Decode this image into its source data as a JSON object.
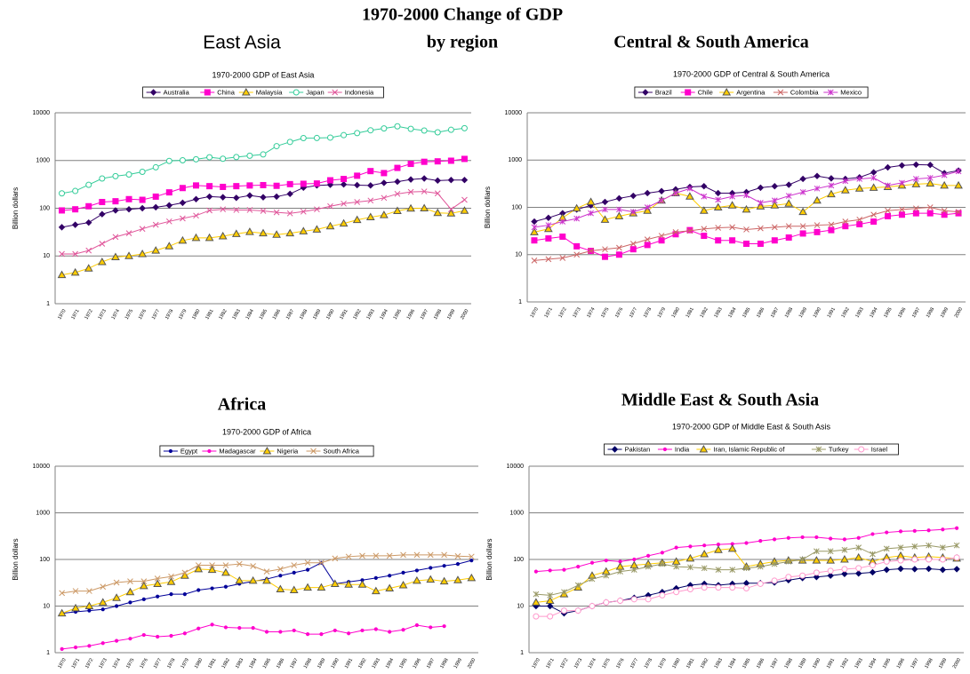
{
  "header": {
    "title": "1970-2000 Change of GDP",
    "subtitle": "by region"
  },
  "chart_data": [
    {
      "type": "line",
      "heading": "East Asia",
      "title": "1970-2000 GDP of East Asia",
      "y_label": "Billion dollars",
      "log": true,
      "grid": true,
      "ylim": [
        1,
        10000
      ],
      "yticks": [
        1,
        10,
        100,
        1000,
        10000
      ],
      "categories": [
        "1970",
        "1971",
        "1972",
        "1973",
        "1974",
        "1975",
        "1976",
        "1977",
        "1978",
        "1979",
        "1980",
        "1981",
        "1982",
        "1983",
        "1984",
        "1985",
        "1986",
        "1987",
        "1988",
        "1989",
        "1990",
        "1991",
        "1992",
        "1993",
        "1994",
        "1995",
        "1996",
        "1997",
        "1998",
        "1999",
        "2000"
      ],
      "series": [
        {
          "name": "Australia",
          "color": "#330066",
          "marker": "diamond",
          "values": [
            40,
            45,
            50,
            75,
            90,
            95,
            100,
            105,
            115,
            130,
            155,
            175,
            170,
            165,
            185,
            170,
            175,
            200,
            270,
            300,
            310,
            315,
            305,
            300,
            340,
            360,
            400,
            420,
            380,
            390,
            390
          ]
        },
        {
          "name": "China",
          "color": "#ff00cc",
          "marker": "square",
          "values": [
            90,
            95,
            110,
            135,
            140,
            155,
            150,
            175,
            215,
            265,
            300,
            290,
            280,
            290,
            300,
            305,
            295,
            320,
            325,
            330,
            385,
            410,
            480,
            600,
            545,
            700,
            850,
            940,
            960,
            990,
            1080
          ]
        },
        {
          "name": "Malaysia",
          "color": "#ffcc00",
          "marker": "triangle",
          "values": [
            4,
            4.5,
            5.5,
            7.5,
            9.5,
            10,
            11,
            13,
            16,
            21,
            24,
            24,
            26,
            29,
            32,
            30,
            28,
            30,
            33,
            36,
            42,
            48,
            57,
            65,
            72,
            88,
            99,
            100,
            80,
            78,
            89
          ]
        },
        {
          "name": "Japan",
          "color": "#33cc99",
          "marker": "circle",
          "values": [
            205,
            230,
            310,
            420,
            470,
            510,
            580,
            720,
            980,
            1010,
            1060,
            1170,
            1090,
            1180,
            1260,
            1340,
            2000,
            2450,
            2950,
            2960,
            3020,
            3400,
            3750,
            4300,
            4700,
            5200,
            4600,
            4250,
            3900,
            4400,
            4750
          ]
        },
        {
          "name": "Indonesia",
          "color": "#e0569a",
          "marker": "x",
          "values": [
            11,
            11,
            13,
            18,
            25,
            30,
            37,
            45,
            53,
            61,
            70,
            90,
            95,
            92,
            92,
            88,
            82,
            78,
            85,
            95,
            110,
            125,
            135,
            145,
            165,
            200,
            220,
            225,
            205,
            95,
            150
          ]
        }
      ]
    },
    {
      "type": "line",
      "heading": "Central & South America",
      "title": "1970-2000 GDP of Central & South America",
      "y_label": "Billion dollars",
      "log": true,
      "grid": true,
      "ylim": [
        1,
        10000
      ],
      "yticks": [
        1,
        10,
        100,
        1000,
        10000
      ],
      "categories": [
        "1970",
        "1971",
        "1972",
        "1973",
        "1974",
        "1975",
        "1976",
        "1977",
        "1978",
        "1979",
        "1980",
        "1981",
        "1982",
        "1983",
        "1984",
        "1985",
        "1986",
        "1987",
        "1988",
        "1989",
        "1990",
        "1991",
        "1992",
        "1993",
        "1994",
        "1995",
        "1996",
        "1997",
        "1998",
        "1999",
        "2000"
      ],
      "series": [
        {
          "name": "Brazil",
          "color": "#330066",
          "marker": "diamond",
          "values": [
            50,
            60,
            75,
            90,
            110,
            130,
            155,
            175,
            200,
            220,
            240,
            270,
            280,
            200,
            200,
            210,
            260,
            280,
            300,
            400,
            460,
            410,
            400,
            430,
            550,
            700,
            770,
            800,
            790,
            530,
            600
          ]
        },
        {
          "name": "Chile",
          "color": "#ff00cc",
          "marker": "square",
          "values": [
            20,
            22,
            24,
            15,
            12,
            9,
            10,
            13,
            16,
            20,
            27,
            33,
            25,
            20,
            20,
            17,
            17,
            20,
            23,
            28,
            30,
            33,
            40,
            44,
            50,
            65,
            70,
            75,
            75,
            70,
            75
          ]
        },
        {
          "name": "Argentina",
          "color": "#ffcc00",
          "marker": "triangle",
          "values": [
            30,
            35,
            60,
            95,
            130,
            55,
            65,
            75,
            85,
            140,
            200,
            170,
            85,
            100,
            110,
            90,
            105,
            110,
            120,
            80,
            140,
            190,
            230,
            250,
            260,
            270,
            290,
            310,
            320,
            290,
            290
          ]
        },
        {
          "name": "Colombia",
          "color": "#cc6666",
          "marker": "x",
          "values": [
            7.5,
            8,
            8.5,
            10,
            12,
            13,
            14,
            17,
            21,
            25,
            30,
            32,
            35,
            37,
            38,
            34,
            36,
            38,
            40,
            40,
            42,
            43,
            50,
            55,
            70,
            85,
            90,
            95,
            100,
            85,
            80
          ]
        },
        {
          "name": "Mexico",
          "color": "#cc33cc",
          "marker": "star",
          "values": [
            38,
            42,
            50,
            58,
            75,
            90,
            90,
            80,
            100,
            140,
            200,
            250,
            170,
            145,
            170,
            180,
            125,
            140,
            175,
            210,
            250,
            290,
            360,
            400,
            420,
            290,
            330,
            400,
            420,
            480,
            580
          ]
        }
      ]
    },
    {
      "type": "line",
      "heading": "Africa",
      "title": "1970-2000 GDP of Africa",
      "y_label": "Billion dollars",
      "log": true,
      "grid": true,
      "ylim": [
        1,
        10000
      ],
      "yticks": [
        1,
        10,
        100,
        1000,
        10000
      ],
      "categories": [
        "1970",
        "1971",
        "1972",
        "1973",
        "1974",
        "1975",
        "1976",
        "1977",
        "1978",
        "1979",
        "1980",
        "1981",
        "1982",
        "1983",
        "1984",
        "1985",
        "1986",
        "1987",
        "1988",
        "1989",
        "1990",
        "1991",
        "1992",
        "1993",
        "1994",
        "1995",
        "1996",
        "1997",
        "1998",
        "1999",
        "2000"
      ],
      "series": [
        {
          "name": "Egypt",
          "color": "#000099",
          "marker": "dot",
          "values": [
            7,
            7.5,
            8,
            8.5,
            10,
            12,
            14,
            16,
            18,
            18,
            22,
            24,
            26,
            30,
            34,
            38,
            45,
            52,
            60,
            85,
            30,
            33,
            36,
            40,
            45,
            52,
            58,
            66,
            73,
            80,
            95
          ]
        },
        {
          "name": "Madagascar",
          "color": "#ff00cc",
          "marker": "dot",
          "values": [
            1.2,
            1.3,
            1.4,
            1.6,
            1.8,
            2.0,
            2.4,
            2.2,
            2.3,
            2.6,
            3.3,
            4.0,
            3.5,
            3.4,
            3.4,
            2.8,
            2.8,
            3.0,
            2.5,
            2.5,
            3.0,
            2.6,
            3.0,
            3.2,
            2.8,
            3.1,
            3.9,
            3.5,
            3.7,
            null,
            null
          ]
        },
        {
          "name": "Nigeria",
          "color": "#ffcc00",
          "marker": "triangle",
          "values": [
            7,
            9,
            10,
            12,
            15,
            20,
            27,
            30,
            33,
            45,
            62,
            60,
            52,
            35,
            35,
            35,
            23,
            22,
            25,
            25,
            30,
            29,
            29,
            21,
            24,
            28,
            35,
            37,
            34,
            36,
            40
          ]
        },
        {
          "name": "South Africa",
          "color": "#cc9966",
          "marker": "x",
          "values": [
            19,
            21,
            21,
            26,
            32,
            34,
            34,
            39,
            43,
            52,
            75,
            75,
            75,
            80,
            72,
            55,
            62,
            75,
            85,
            85,
            105,
            115,
            120,
            120,
            120,
            125,
            125,
            125,
            125,
            118,
            115
          ]
        }
      ]
    },
    {
      "type": "line",
      "heading": "Middle East & South Asia",
      "title": "1970-2000 GDP of Middle East & South Asis",
      "y_label": "Billion dollars",
      "log": true,
      "grid": true,
      "ylim": [
        1,
        10000
      ],
      "yticks": [
        1,
        10,
        100,
        1000,
        10000
      ],
      "categories": [
        "1970",
        "1971",
        "1972",
        "1973",
        "1974",
        "1975",
        "1976",
        "1977",
        "1978",
        "1979",
        "1980",
        "1981",
        "1982",
        "1983",
        "1984",
        "1985",
        "1986",
        "1987",
        "1988",
        "1989",
        "1990",
        "1991",
        "1992",
        "1993",
        "1994",
        "1995",
        "1996",
        "1997",
        "1998",
        "1999",
        "2000"
      ],
      "series": [
        {
          "name": "Pakistan",
          "color": "#000066",
          "marker": "diamond",
          "values": [
            10,
            10,
            7,
            8,
            10,
            12,
            13,
            15,
            17,
            20,
            24,
            28,
            30,
            28,
            30,
            31,
            31,
            32,
            36,
            40,
            42,
            45,
            49,
            50,
            53,
            60,
            63,
            62,
            63,
            60,
            62
          ]
        },
        {
          "name": "India",
          "color": "#ff00cc",
          "marker": "dot",
          "values": [
            55,
            58,
            60,
            70,
            85,
            95,
            90,
            100,
            120,
            140,
            180,
            190,
            200,
            210,
            215,
            225,
            250,
            270,
            290,
            300,
            300,
            280,
            270,
            290,
            350,
            380,
            400,
            410,
            420,
            440,
            470
          ]
        },
        {
          "name": "Iran, Islamic Republic of",
          "color": "#ffcc00",
          "marker": "triangle",
          "values": [
            12,
            13,
            18,
            25,
            45,
            55,
            70,
            75,
            80,
            85,
            90,
            105,
            130,
            160,
            170,
            70,
            80,
            90,
            95,
            95,
            95,
            95,
            100,
            110,
            90,
            110,
            120,
            110,
            115,
            110,
            105
          ]
        },
        {
          "name": "Turkey",
          "color": "#999966",
          "marker": "star",
          "values": [
            18,
            17,
            20,
            28,
            38,
            45,
            55,
            60,
            70,
            80,
            70,
            68,
            65,
            60,
            60,
            65,
            70,
            80,
            90,
            100,
            150,
            150,
            160,
            180,
            130,
            170,
            180,
            190,
            200,
            180,
            200
          ]
        },
        {
          "name": "Israel",
          "color": "#ff99cc",
          "marker": "circle",
          "values": [
            6,
            6,
            8,
            8,
            10,
            12,
            13,
            14,
            14,
            17,
            20,
            23,
            25,
            25,
            25,
            24,
            30,
            35,
            42,
            45,
            52,
            57,
            62,
            65,
            75,
            90,
            95,
            100,
            100,
            100,
            110
          ]
        }
      ]
    }
  ]
}
